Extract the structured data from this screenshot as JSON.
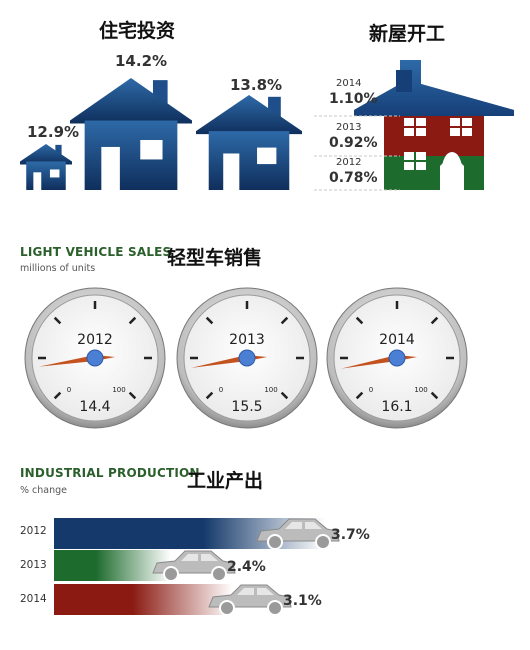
{
  "colors": {
    "navy": "#14396a",
    "green": "#1e6b2e",
    "red": "#8a1a12",
    "title_green": "#2b5f2b",
    "needle": "#c4521f",
    "hub": "#4a7fd4",
    "car_gray": "#b8b8b8"
  },
  "residential_investment": {
    "title_cn": "住宅投资"
  },
  "housing_starts": {
    "title_cn": "新屋开工"
  },
  "light_vehicle_sales": {
    "title_en": "LIGHT VEHICLE SALES",
    "subtitle": "millions of units",
    "title_cn": "轻型车销售"
  },
  "industrial_production": {
    "title_en": "INDUSTRIAL PRODUCTION",
    "subtitle": "% change",
    "title_cn": "工业产出"
  },
  "chart_data": [
    {
      "type": "bar",
      "name": "residential_investment",
      "title": "住宅投资",
      "categories": [
        "",
        "",
        ""
      ],
      "values": [
        12.9,
        14.2,
        13.8
      ],
      "labels": [
        "12.9%",
        "14.2%",
        "13.8%"
      ]
    },
    {
      "type": "bar",
      "name": "housing_starts",
      "title": "新屋开工",
      "categories": [
        "2014",
        "2013",
        "2012"
      ],
      "values": [
        1.1,
        0.92,
        0.78
      ],
      "labels": [
        "1.10%",
        "0.92%",
        "0.78%"
      ]
    },
    {
      "type": "gauge",
      "name": "light_vehicle_sales",
      "title": "LIGHT VEHICLE SALES",
      "subtitle": "millions of units",
      "scale_min": 0,
      "scale_max": 100,
      "scale_min_label": "0",
      "scale_max_label": "100",
      "categories": [
        "2012",
        "2013",
        "2014"
      ],
      "values": [
        14.4,
        15.5,
        16.1
      ],
      "labels": [
        "14.4",
        "15.5",
        "16.1"
      ]
    },
    {
      "type": "bar",
      "name": "industrial_production",
      "title": "INDUSTRIAL PRODUCTION",
      "subtitle": "% change",
      "categories": [
        "2012",
        "2013",
        "2014"
      ],
      "values": [
        3.7,
        2.4,
        3.1
      ],
      "labels": [
        "3.7%",
        "2.4%",
        "3.1%"
      ]
    }
  ]
}
